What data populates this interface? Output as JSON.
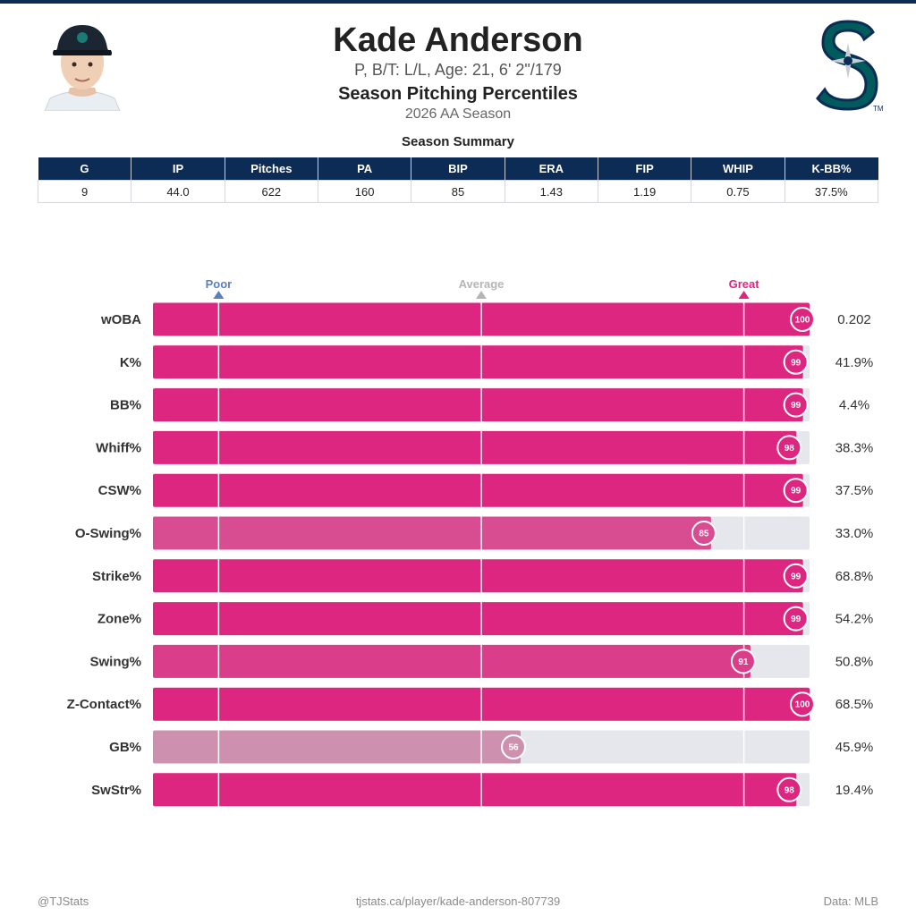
{
  "header": {
    "player_name": "Kade Anderson",
    "bio": "P, B/T: L/L, Age: 21, 6' 2\"/179",
    "report_title": "Season Pitching Percentiles",
    "season": "2026 AA Season",
    "summary_title": "Season Summary"
  },
  "team_logo_icon": "mariners-compass-s-logo",
  "headshot_icon": "player-headshot",
  "summary": {
    "columns": [
      "G",
      "IP",
      "Pitches",
      "PA",
      "BIP",
      "ERA",
      "FIP",
      "WHIP",
      "K-BB%"
    ],
    "values": [
      "9",
      "44.0",
      "622",
      "160",
      "85",
      "1.43",
      "1.19",
      "0.75",
      "37.5%"
    ]
  },
  "colors": {
    "navy": "#0c2c56",
    "great": "#dd2680",
    "poor": "#5b7fbf",
    "average": "#b5b5b5",
    "track": "#e6e7ec"
  },
  "chart_data": {
    "type": "bar",
    "orientation": "horizontal",
    "xlim": [
      0,
      100
    ],
    "markers": [
      {
        "label": "Poor",
        "value": 10
      },
      {
        "label": "Average",
        "value": 50
      },
      {
        "label": "Great",
        "value": 90
      }
    ],
    "categories": [
      "wOBA",
      "K%",
      "BB%",
      "Whiff%",
      "CSW%",
      "O-Swing%",
      "Strike%",
      "Zone%",
      "Swing%",
      "Z-Contact%",
      "GB%",
      "SwStr%"
    ],
    "percentiles": [
      100,
      99,
      99,
      98,
      99,
      85,
      99,
      99,
      91,
      100,
      56,
      98
    ],
    "stat_values": [
      "0.202",
      "41.9%",
      "4.4%",
      "38.3%",
      "37.5%",
      "33.0%",
      "68.8%",
      "54.2%",
      "50.8%",
      "68.5%",
      "45.9%",
      "19.4%"
    ]
  },
  "footer": {
    "left": "@TJStats",
    "center": "tjstats.ca/player/kade-anderson-807739",
    "right": "Data: MLB"
  }
}
